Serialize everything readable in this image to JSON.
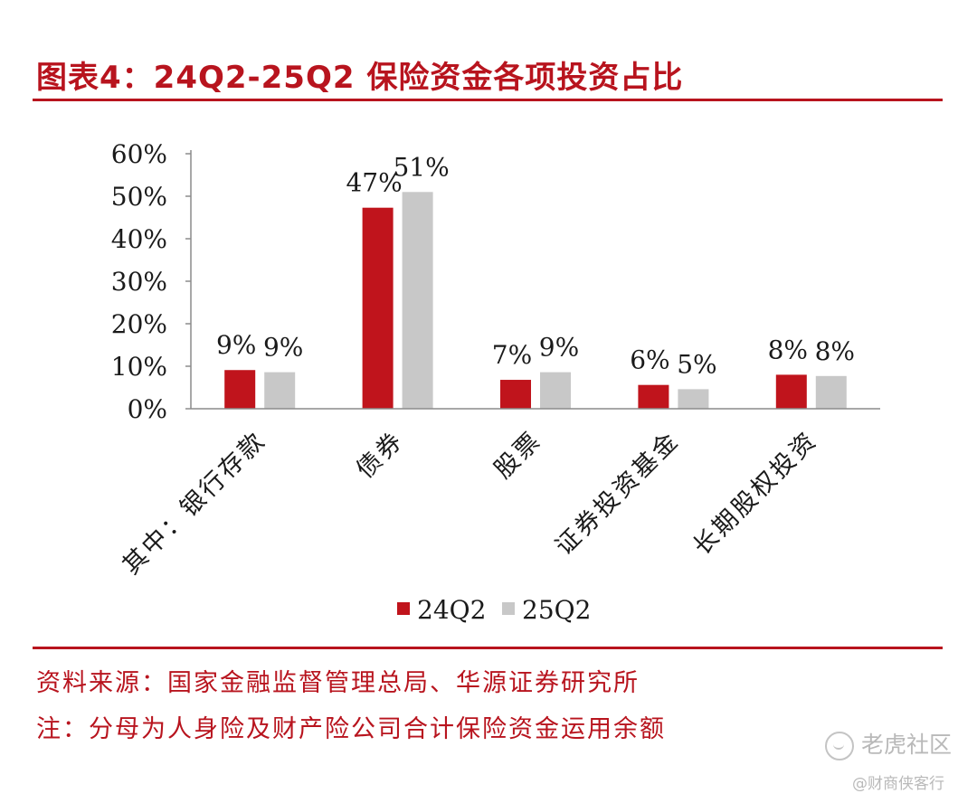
{
  "title": "图表4：24Q2-25Q2 保险资金各项投资占比",
  "source": "资料来源：国家金融监督管理总局、华源证券研究所",
  "note": "注：分母为人身险及财产险公司合计保险资金运用余额",
  "watermark": {
    "main": "老虎社区",
    "sub": "@财商侠客行",
    "icon": "tiger-community-logo-icon"
  },
  "colors": {
    "accent": "#b8141e",
    "series_24Q2": "#c0141c",
    "series_25Q2": "#c8c8c8",
    "axis": "#8c8c8c",
    "text": "#1a1a1a"
  },
  "chart_data": {
    "type": "bar",
    "categories": [
      "其中：银行存款",
      "债券",
      "股票",
      "证券投资基金",
      "长期股权投资"
    ],
    "series": [
      {
        "name": "24Q2",
        "values": [
          9.1,
          47.3,
          6.8,
          5.6,
          8.0
        ],
        "labels": [
          "9%",
          "47%",
          "7%",
          "6%",
          "8%"
        ]
      },
      {
        "name": "25Q2",
        "values": [
          8.6,
          51.0,
          8.6,
          4.6,
          7.7
        ],
        "labels": [
          "9%",
          "51%",
          "9%",
          "5%",
          "8%"
        ]
      }
    ],
    "yticks": [
      "0%",
      "10%",
      "20%",
      "30%",
      "40%",
      "50%",
      "60%"
    ],
    "ylim": [
      0,
      60
    ],
    "grid": false,
    "legend_position": "bottom"
  }
}
